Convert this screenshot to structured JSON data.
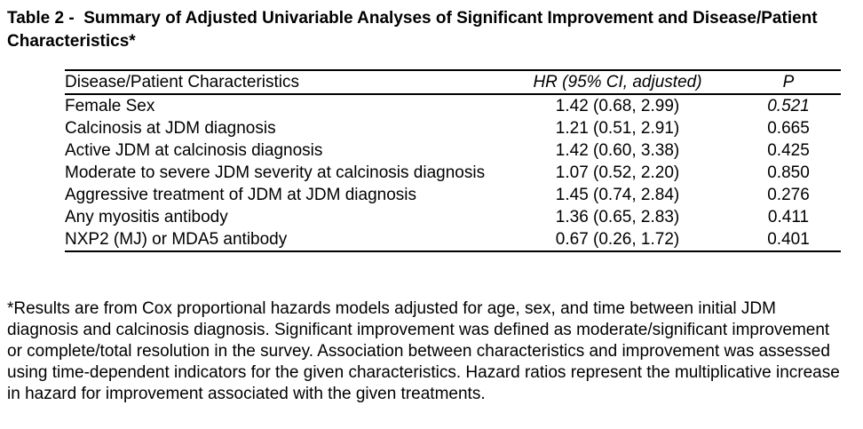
{
  "title": "Table 2 -  Summary of Adjusted Univariable Analyses of Significant Improvement and Disease/Patient Characteristics*",
  "table": {
    "columns": [
      "Disease/Patient Characteristics",
      "HR (95% CI, adjusted)",
      "P"
    ],
    "rows": [
      {
        "characteristic": "Female Sex",
        "hr": "1.42 (0.68, 2.99)",
        "p": "0.521",
        "p_italic": true
      },
      {
        "characteristic": "Calcinosis at JDM diagnosis",
        "hr": "1.21 (0.51, 2.91)",
        "p": "0.665",
        "p_italic": false
      },
      {
        "characteristic": "Active JDM at calcinosis diagnosis",
        "hr": "1.42 (0.60, 3.38)",
        "p": "0.425",
        "p_italic": false
      },
      {
        "characteristic": "Moderate to severe JDM severity at calcinosis diagnosis",
        "hr": "1.07 (0.52, 2.20)",
        "p": "0.850",
        "p_italic": false
      },
      {
        "characteristic": "Aggressive treatment of JDM at JDM diagnosis",
        "hr": "1.45 (0.74, 2.84)",
        "p": "0.276",
        "p_italic": false
      },
      {
        "characteristic": "Any myositis antibody",
        "hr": "1.36 (0.65, 2.83)",
        "p": "0.411",
        "p_italic": false
      },
      {
        "characteristic": "NXP2 (MJ) or MDA5 antibody",
        "hr": "0.67 (0.26, 1.72)",
        "p": "0.401",
        "p_italic": false
      }
    ]
  },
  "footnote": "*Results are from Cox proportional hazards models adjusted for age, sex, and time between initial JDM diagnosis and calcinosis diagnosis. Significant improvement was defined as moderate/significant improvement or complete/total resolution in the survey. Association between characteristics and improvement was assessed using time-dependent indicators for the given characteristics. Hazard ratios represent the multiplicative increase in hazard for improvement associated with the given treatments.",
  "colors": {
    "text": "#000000",
    "background": "#ffffff",
    "rule": "#000000"
  }
}
